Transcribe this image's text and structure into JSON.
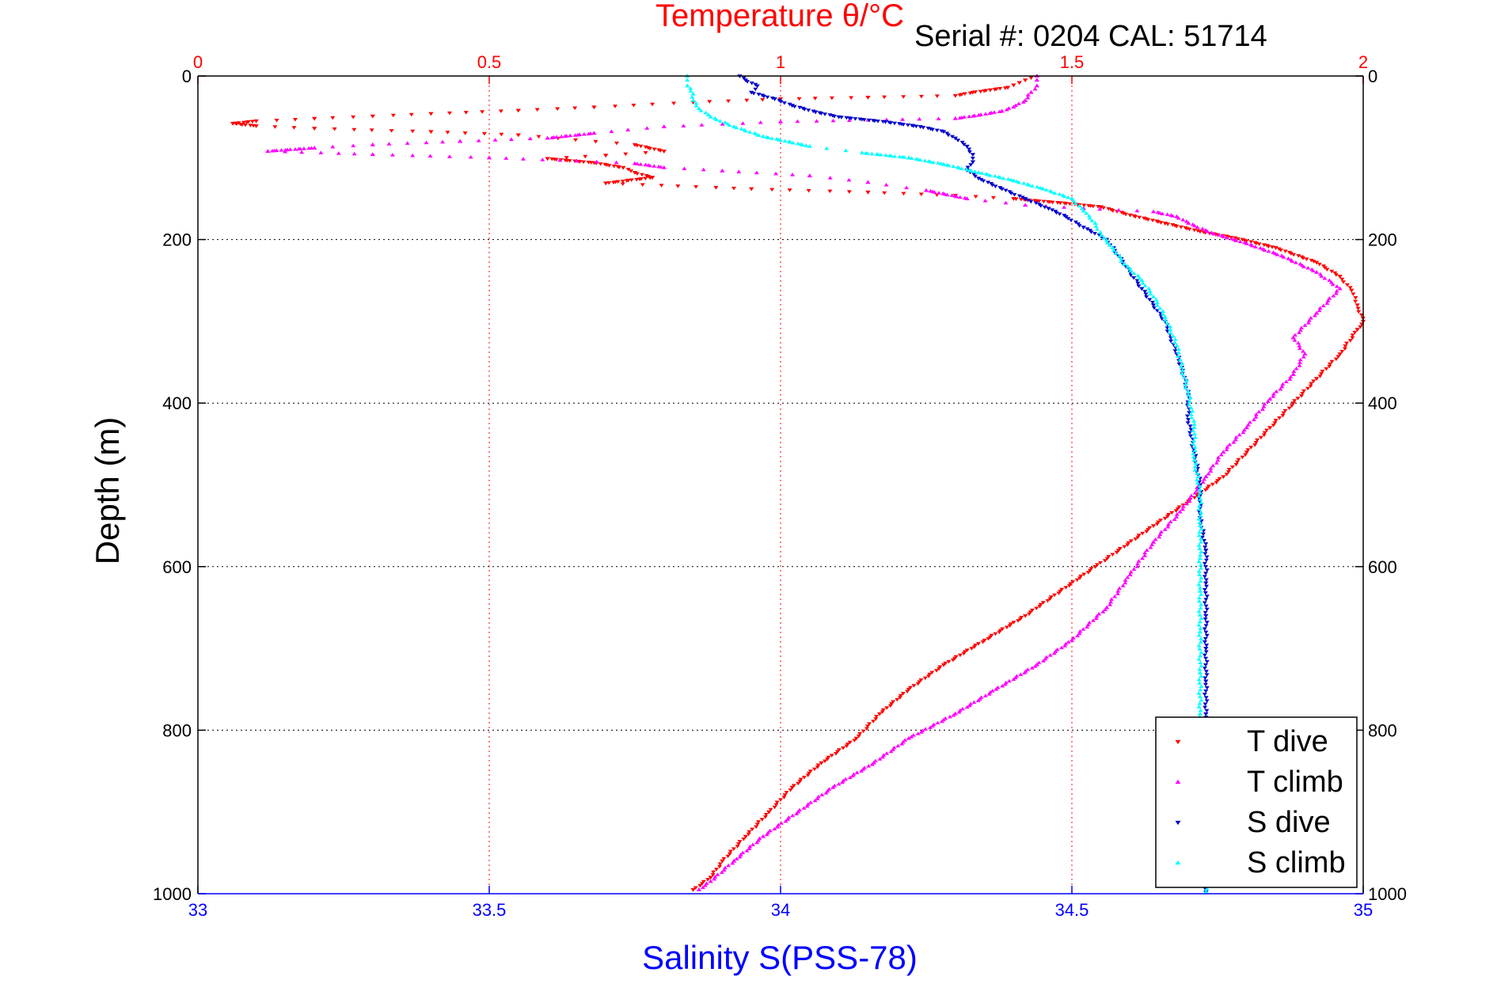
{
  "chart_data": {
    "type": "scatter",
    "title_top": "Temperature θ/°C",
    "serial_label": "Serial #: 0204  CAL: 51714",
    "ylabel": "Depth (m)",
    "xlabel_bottom": "Salinity S(PSS-78)",
    "ylim": [
      0,
      1000
    ],
    "y_reversed": true,
    "x_top": {
      "lim": [
        0,
        2
      ],
      "ticks": [
        "0",
        "0.5",
        "1",
        "1.5",
        "2"
      ],
      "color": "#ff0000"
    },
    "x_bottom": {
      "lim": [
        33,
        35
      ],
      "ticks": [
        "33",
        "33.5",
        "34",
        "34.5",
        "35"
      ],
      "color": "#0000ff"
    },
    "y_ticks": [
      "0",
      "200",
      "400",
      "600",
      "800",
      "1000"
    ],
    "grid": true,
    "legend": {
      "placement": "bottom-right"
    },
    "series": [
      {
        "name": "T dive",
        "axis": "top",
        "color": "#ff0000",
        "marker": "triangle-down",
        "points": [
          [
            1.43,
            2
          ],
          [
            1.42,
            5
          ],
          [
            1.41,
            8
          ],
          [
            1.4,
            11
          ],
          [
            1.39,
            14
          ],
          [
            1.36,
            17
          ],
          [
            1.33,
            20
          ],
          [
            1.3,
            24
          ],
          [
            1.15,
            26
          ],
          [
            1.0,
            28
          ],
          [
            0.85,
            32
          ],
          [
            0.68,
            38
          ],
          [
            0.55,
            42
          ],
          [
            0.4,
            46
          ],
          [
            0.3,
            49
          ],
          [
            0.2,
            52
          ],
          [
            0.1,
            55
          ],
          [
            0.06,
            58
          ],
          [
            0.1,
            61
          ],
          [
            0.2,
            64
          ],
          [
            0.4,
            68
          ],
          [
            0.55,
            72
          ],
          [
            0.75,
            84
          ],
          [
            0.8,
            92
          ],
          [
            0.7,
            97
          ],
          [
            0.6,
            101
          ],
          [
            0.68,
            106
          ],
          [
            0.73,
            112
          ],
          [
            0.75,
            118
          ],
          [
            0.78,
            124
          ],
          [
            0.7,
            131
          ],
          [
            0.95,
            138
          ],
          [
            1.15,
            142
          ],
          [
            1.3,
            146
          ],
          [
            1.4,
            150
          ],
          [
            1.48,
            155
          ],
          [
            1.55,
            160
          ],
          [
            1.6,
            170
          ],
          [
            1.66,
            180
          ],
          [
            1.72,
            190
          ],
          [
            1.78,
            198
          ],
          [
            1.85,
            210
          ],
          [
            1.92,
            228
          ],
          [
            1.96,
            245
          ],
          [
            1.98,
            262
          ],
          [
            1.99,
            280
          ],
          [
            2.0,
            300
          ],
          [
            1.99,
            310
          ],
          [
            1.96,
            340
          ],
          [
            1.92,
            370
          ],
          [
            1.88,
            400
          ],
          [
            1.84,
            430
          ],
          [
            1.8,
            460
          ],
          [
            1.76,
            490
          ],
          [
            1.7,
            520
          ],
          [
            1.64,
            550
          ],
          [
            1.58,
            580
          ],
          [
            1.54,
            600
          ],
          [
            1.48,
            630
          ],
          [
            1.42,
            660
          ],
          [
            1.35,
            690
          ],
          [
            1.28,
            720
          ],
          [
            1.22,
            750
          ],
          [
            1.17,
            780
          ],
          [
            1.13,
            810
          ],
          [
            1.07,
            840
          ],
          [
            1.02,
            870
          ],
          [
            0.98,
            900
          ],
          [
            0.94,
            930
          ],
          [
            0.9,
            960
          ],
          [
            0.88,
            980
          ],
          [
            0.85,
            995
          ]
        ]
      },
      {
        "name": "T climb",
        "axis": "top",
        "color": "#ff00ff",
        "marker": "triangle-up",
        "points": [
          [
            1.44,
            0
          ],
          [
            1.44,
            5
          ],
          [
            1.44,
            12
          ],
          [
            1.43,
            20
          ],
          [
            1.42,
            30
          ],
          [
            1.4,
            38
          ],
          [
            1.38,
            43
          ],
          [
            1.34,
            48
          ],
          [
            1.3,
            52
          ],
          [
            1.0,
            56
          ],
          [
            0.8,
            62
          ],
          [
            0.68,
            70
          ],
          [
            0.6,
            76
          ],
          [
            0.45,
            80
          ],
          [
            0.3,
            84
          ],
          [
            0.2,
            88
          ],
          [
            0.12,
            92
          ],
          [
            0.3,
            96
          ],
          [
            0.5,
            100
          ],
          [
            0.65,
            104
          ],
          [
            0.75,
            107
          ],
          [
            0.8,
            112
          ],
          [
            0.9,
            116
          ],
          [
            1.05,
            122
          ],
          [
            1.15,
            130
          ],
          [
            1.25,
            140
          ],
          [
            1.32,
            150
          ],
          [
            1.42,
            158
          ],
          [
            1.52,
            162
          ],
          [
            1.64,
            166
          ],
          [
            1.68,
            172
          ],
          [
            1.7,
            180
          ],
          [
            1.74,
            192
          ],
          [
            1.8,
            205
          ],
          [
            1.86,
            220
          ],
          [
            1.92,
            240
          ],
          [
            1.96,
            260
          ],
          [
            1.92,
            290
          ],
          [
            1.88,
            320
          ],
          [
            1.9,
            340
          ],
          [
            1.88,
            365
          ],
          [
            1.84,
            395
          ],
          [
            1.8,
            430
          ],
          [
            1.76,
            460
          ],
          [
            1.73,
            490
          ],
          [
            1.69,
            530
          ],
          [
            1.64,
            570
          ],
          [
            1.6,
            610
          ],
          [
            1.56,
            650
          ],
          [
            1.5,
            690
          ],
          [
            1.44,
            720
          ],
          [
            1.37,
            750
          ],
          [
            1.3,
            780
          ],
          [
            1.22,
            810
          ],
          [
            1.16,
            840
          ],
          [
            1.09,
            870
          ],
          [
            1.03,
            900
          ],
          [
            0.97,
            930
          ],
          [
            0.92,
            960
          ],
          [
            0.88,
            985
          ],
          [
            0.86,
            995
          ]
        ]
      },
      {
        "name": "S dive",
        "axis": "bottom",
        "color": "#0000cc",
        "marker": "triangle-down",
        "points": [
          [
            33.93,
            0
          ],
          [
            33.94,
            5
          ],
          [
            33.96,
            12
          ],
          [
            33.95,
            20
          ],
          [
            33.99,
            28
          ],
          [
            34.02,
            36
          ],
          [
            34.06,
            44
          ],
          [
            34.1,
            50
          ],
          [
            34.18,
            56
          ],
          [
            34.24,
            62
          ],
          [
            34.28,
            68
          ],
          [
            34.3,
            76
          ],
          [
            34.32,
            86
          ],
          [
            34.33,
            96
          ],
          [
            34.33,
            105
          ],
          [
            34.32,
            115
          ],
          [
            34.34,
            125
          ],
          [
            34.38,
            138
          ],
          [
            34.42,
            150
          ],
          [
            34.46,
            162
          ],
          [
            34.49,
            172
          ],
          [
            34.52,
            185
          ],
          [
            34.56,
            200
          ],
          [
            34.58,
            220
          ],
          [
            34.6,
            240
          ],
          [
            34.62,
            260
          ],
          [
            34.64,
            280
          ],
          [
            34.66,
            300
          ],
          [
            34.67,
            320
          ],
          [
            34.68,
            340
          ],
          [
            34.69,
            360
          ],
          [
            34.7,
            390
          ],
          [
            34.7,
            420
          ],
          [
            34.71,
            460
          ],
          [
            34.72,
            500
          ],
          [
            34.72,
            540
          ],
          [
            34.73,
            580
          ],
          [
            34.73,
            620
          ],
          [
            34.73,
            660
          ],
          [
            34.73,
            700
          ],
          [
            34.73,
            740
          ],
          [
            34.73,
            780
          ],
          [
            34.73,
            820
          ],
          [
            34.73,
            860
          ],
          [
            34.73,
            900
          ],
          [
            34.73,
            940
          ],
          [
            34.73,
            980
          ],
          [
            34.73,
            998
          ]
        ]
      },
      {
        "name": "S climb",
        "axis": "bottom",
        "color": "#00ffff",
        "marker": "triangle-up",
        "points": [
          [
            33.84,
            0
          ],
          [
            33.84,
            5
          ],
          [
            33.84,
            12
          ],
          [
            33.85,
            22
          ],
          [
            33.85,
            30
          ],
          [
            33.86,
            40
          ],
          [
            33.88,
            50
          ],
          [
            33.92,
            62
          ],
          [
            33.97,
            74
          ],
          [
            34.05,
            86
          ],
          [
            34.14,
            94
          ],
          [
            34.22,
            100
          ],
          [
            34.28,
            108
          ],
          [
            34.34,
            118
          ],
          [
            34.4,
            128
          ],
          [
            34.45,
            138
          ],
          [
            34.5,
            150
          ],
          [
            34.52,
            165
          ],
          [
            34.54,
            180
          ],
          [
            34.55,
            195
          ],
          [
            34.57,
            210
          ],
          [
            34.59,
            230
          ],
          [
            34.62,
            250
          ],
          [
            34.64,
            270
          ],
          [
            34.66,
            295
          ],
          [
            34.68,
            330
          ],
          [
            34.69,
            360
          ],
          [
            34.7,
            390
          ],
          [
            34.71,
            430
          ],
          [
            34.71,
            470
          ],
          [
            34.72,
            510
          ],
          [
            34.72,
            550
          ],
          [
            34.72,
            590
          ],
          [
            34.72,
            630
          ],
          [
            34.72,
            680
          ],
          [
            34.72,
            730
          ],
          [
            34.72,
            780
          ],
          [
            34.73,
            830
          ],
          [
            34.73,
            880
          ],
          [
            34.73,
            930
          ],
          [
            34.73,
            970
          ],
          [
            34.73,
            998
          ]
        ]
      }
    ]
  }
}
